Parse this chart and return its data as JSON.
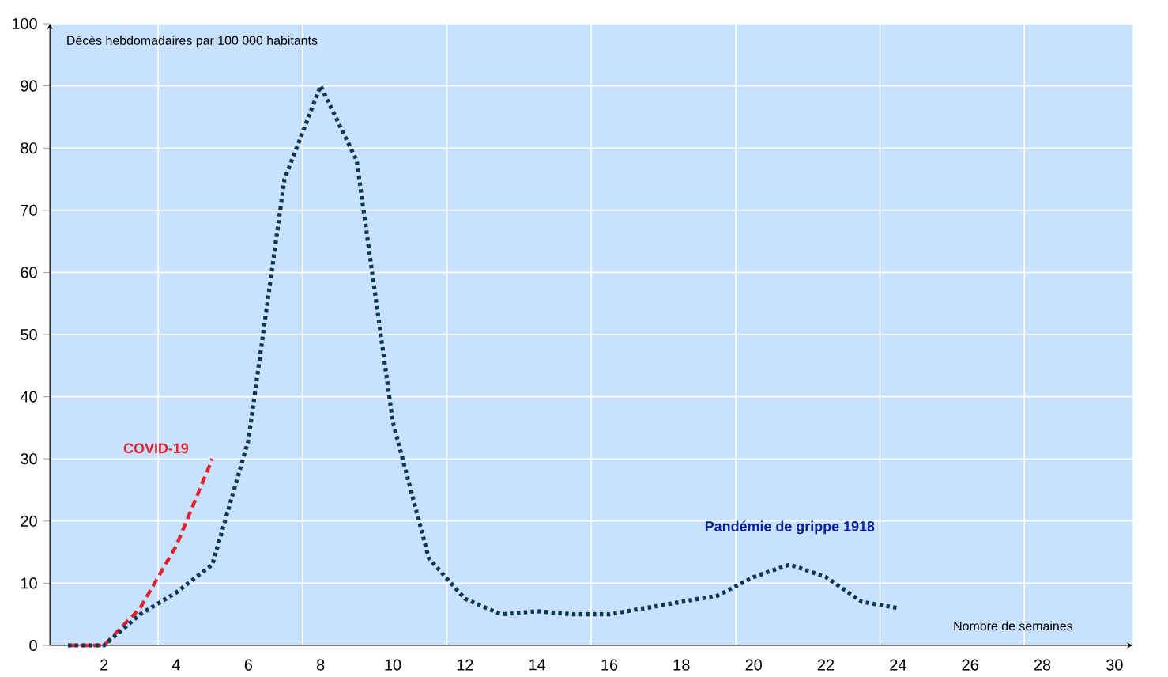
{
  "chart_data": {
    "type": "line",
    "ylabel": "Décès hebdomadaires par 100 000 habitants",
    "xlabel": "Nombre de semaines",
    "categories": [
      null,
      "2",
      null,
      "4",
      null,
      "6",
      null,
      "8",
      null,
      "10",
      null,
      "12",
      null,
      "14",
      null,
      "16",
      null,
      "18",
      null,
      "20",
      null,
      "22",
      null,
      "24",
      null,
      "26",
      null,
      "28",
      null,
      "30"
    ],
    "series": [
      {
        "name": "COVID-19",
        "color": "#e8202a",
        "line_style": "dashed",
        "values": [
          0,
          0,
          6,
          16,
          30,
          null,
          null,
          null,
          null,
          null,
          null,
          null,
          null,
          null,
          null,
          null,
          null,
          null,
          null,
          null,
          null,
          null,
          null,
          null,
          null,
          null,
          null,
          null,
          null,
          null
        ]
      },
      {
        "name": "Pandémie de grippe 1918",
        "color": "#0d3558",
        "line_style": "dotted",
        "values": [
          0,
          0,
          5,
          8.5,
          13,
          33,
          75,
          90,
          78,
          36,
          14,
          7.5,
          5,
          5.5,
          5,
          5,
          6,
          7,
          8,
          11,
          13,
          11,
          7,
          6,
          null,
          null,
          null,
          null,
          null,
          null
        ]
      }
    ],
    "ylim": [
      0,
      100
    ],
    "yticks": [
      0,
      10,
      20,
      30,
      40,
      50,
      60,
      70,
      80,
      90,
      100
    ],
    "grid": true,
    "marker": "none"
  }
}
